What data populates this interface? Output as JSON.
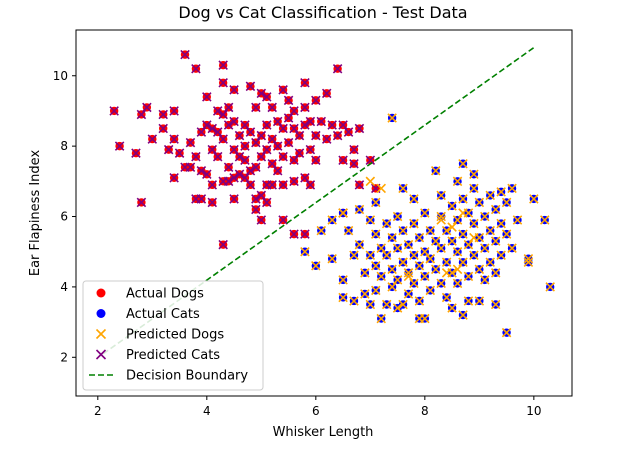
{
  "chart_data": {
    "type": "scatter",
    "title": "Dog vs Cat Classification - Test Data",
    "xlabel": "Whisker Length",
    "ylabel": "Ear Flapiness Index",
    "xlim": [
      1.6,
      10.7
    ],
    "ylim": [
      0.9,
      11.3
    ],
    "xticks": [
      2,
      4,
      6,
      8,
      10
    ],
    "yticks": [
      2,
      4,
      6,
      8,
      10
    ],
    "grid": false,
    "legend_position": "lower-left",
    "legend": [
      {
        "label": "Actual Dogs",
        "marker": "circle",
        "color": "#ff0000"
      },
      {
        "label": "Actual Cats",
        "marker": "circle",
        "color": "#0000ff"
      },
      {
        "label": "Predicted Dogs",
        "marker": "x",
        "color": "#ffa500"
      },
      {
        "label": "Predicted Cats",
        "marker": "x",
        "color": "#800080"
      },
      {
        "label": "Decision Boundary",
        "marker": "dashed-line",
        "color": "#008000"
      }
    ],
    "decision_boundary": {
      "x": [
        2.1,
        10.0
      ],
      "y": [
        2.1,
        10.8
      ],
      "color": "#008000"
    },
    "series": [
      {
        "name": "Actual Dogs",
        "color": "#ff0000",
        "points": [
          [
            2.3,
            9.0
          ],
          [
            2.4,
            8.0
          ],
          [
            2.7,
            7.8
          ],
          [
            2.8,
            8.9
          ],
          [
            2.8,
            6.4
          ],
          [
            2.9,
            9.1
          ],
          [
            3.0,
            8.2
          ],
          [
            3.2,
            8.5
          ],
          [
            3.2,
            8.9
          ],
          [
            3.3,
            7.9
          ],
          [
            3.4,
            9.0
          ],
          [
            3.4,
            8.2
          ],
          [
            3.4,
            7.1
          ],
          [
            3.5,
            7.8
          ],
          [
            3.6,
            10.6
          ],
          [
            3.6,
            7.4
          ],
          [
            3.7,
            8.1
          ],
          [
            3.7,
            7.4
          ],
          [
            3.8,
            10.2
          ],
          [
            3.8,
            7.7
          ],
          [
            3.8,
            6.5
          ],
          [
            3.9,
            8.4
          ],
          [
            3.9,
            7.3
          ],
          [
            3.9,
            6.5
          ],
          [
            4.0,
            9.4
          ],
          [
            4.0,
            8.6
          ],
          [
            4.0,
            7.2
          ],
          [
            4.1,
            8.5
          ],
          [
            4.1,
            7.9
          ],
          [
            4.1,
            6.9
          ],
          [
            4.1,
            6.4
          ],
          [
            4.2,
            9.0
          ],
          [
            4.2,
            8.4
          ],
          [
            4.2,
            7.7
          ],
          [
            4.3,
            10.3
          ],
          [
            4.3,
            9.8
          ],
          [
            4.3,
            8.9
          ],
          [
            4.3,
            8.2
          ],
          [
            4.3,
            7.0
          ],
          [
            4.3,
            5.2
          ],
          [
            4.4,
            9.1
          ],
          [
            4.4,
            8.6
          ],
          [
            4.4,
            7.4
          ],
          [
            4.4,
            7.0
          ],
          [
            4.5,
            9.6
          ],
          [
            4.5,
            8.7
          ],
          [
            4.5,
            7.9
          ],
          [
            4.5,
            7.1
          ],
          [
            4.5,
            6.5
          ],
          [
            4.6,
            8.3
          ],
          [
            4.6,
            7.7
          ],
          [
            4.6,
            7.2
          ],
          [
            4.7,
            8.6
          ],
          [
            4.7,
            8.0
          ],
          [
            4.7,
            7.6
          ],
          [
            4.7,
            7.1
          ],
          [
            4.8,
            9.7
          ],
          [
            4.8,
            8.4
          ],
          [
            4.8,
            7.3
          ],
          [
            4.8,
            6.9
          ],
          [
            4.9,
            9.1
          ],
          [
            4.9,
            8.1
          ],
          [
            4.9,
            7.4
          ],
          [
            4.9,
            6.5
          ],
          [
            4.9,
            6.2
          ],
          [
            5.0,
            9.5
          ],
          [
            5.0,
            8.3
          ],
          [
            5.0,
            7.7
          ],
          [
            5.0,
            6.6
          ],
          [
            5.0,
            5.9
          ],
          [
            5.1,
            9.4
          ],
          [
            5.1,
            8.6
          ],
          [
            5.1,
            7.9
          ],
          [
            5.1,
            6.9
          ],
          [
            5.1,
            6.4
          ],
          [
            5.2,
            9.1
          ],
          [
            5.2,
            8.2
          ],
          [
            5.2,
            7.5
          ],
          [
            5.2,
            6.9
          ],
          [
            5.3,
            8.7
          ],
          [
            5.3,
            8.0
          ],
          [
            5.3,
            7.3
          ],
          [
            5.4,
            9.6
          ],
          [
            5.4,
            8.5
          ],
          [
            5.4,
            7.7
          ],
          [
            5.4,
            6.9
          ],
          [
            5.4,
            5.9
          ],
          [
            5.5,
            9.3
          ],
          [
            5.5,
            8.8
          ],
          [
            5.5,
            8.1
          ],
          [
            5.6,
            9.0
          ],
          [
            5.6,
            8.5
          ],
          [
            5.6,
            7.6
          ],
          [
            5.6,
            7.0
          ],
          [
            5.7,
            8.3
          ],
          [
            5.7,
            7.8
          ],
          [
            5.8,
            9.8
          ],
          [
            5.8,
            9.1
          ],
          [
            5.8,
            8.6
          ],
          [
            5.8,
            7.1
          ],
          [
            5.8,
            5.5
          ],
          [
            5.9,
            8.7
          ],
          [
            5.9,
            7.9
          ],
          [
            5.9,
            6.9
          ],
          [
            6.0,
            9.3
          ],
          [
            6.0,
            8.3
          ],
          [
            6.0,
            7.6
          ],
          [
            6.1,
            8.7
          ],
          [
            6.2,
            8.2
          ],
          [
            6.2,
            9.5
          ],
          [
            6.3,
            8.6
          ],
          [
            6.4,
            8.3
          ],
          [
            6.4,
            10.2
          ],
          [
            6.5,
            8.6
          ],
          [
            6.5,
            7.6
          ],
          [
            6.6,
            8.4
          ],
          [
            6.7,
            7.9
          ],
          [
            6.7,
            7.5
          ],
          [
            6.8,
            8.5
          ],
          [
            6.8,
            6.9
          ],
          [
            7.0,
            7.6
          ],
          [
            6.5,
            6.1
          ],
          [
            7.1,
            6.8
          ],
          [
            5.6,
            5.5
          ]
        ]
      },
      {
        "name": "Actual Cats",
        "color": "#0000ff",
        "points": [
          [
            7.4,
            8.8
          ],
          [
            5.8,
            5.0
          ],
          [
            6.0,
            4.6
          ],
          [
            6.1,
            5.6
          ],
          [
            6.3,
            5.9
          ],
          [
            6.3,
            4.8
          ],
          [
            6.5,
            6.1
          ],
          [
            6.5,
            4.2
          ],
          [
            6.5,
            3.7
          ],
          [
            6.6,
            5.6
          ],
          [
            6.7,
            4.9
          ],
          [
            6.7,
            3.6
          ],
          [
            6.8,
            6.2
          ],
          [
            6.8,
            5.2
          ],
          [
            6.9,
            4.4
          ],
          [
            6.9,
            3.8
          ],
          [
            7.0,
            5.9
          ],
          [
            7.0,
            4.9
          ],
          [
            7.0,
            3.5
          ],
          [
            7.1,
            6.4
          ],
          [
            7.1,
            5.5
          ],
          [
            7.1,
            4.6
          ],
          [
            7.1,
            3.9
          ],
          [
            7.2,
            5.1
          ],
          [
            7.2,
            4.3
          ],
          [
            7.2,
            3.1
          ],
          [
            7.3,
            5.8
          ],
          [
            7.3,
            4.9
          ],
          [
            7.3,
            3.5
          ],
          [
            7.4,
            5.4
          ],
          [
            7.4,
            4.5
          ],
          [
            7.4,
            4.0
          ],
          [
            7.5,
            6.0
          ],
          [
            7.5,
            5.1
          ],
          [
            7.5,
            4.2
          ],
          [
            7.5,
            3.4
          ],
          [
            7.6,
            5.6
          ],
          [
            7.6,
            4.7
          ],
          [
            7.6,
            6.8
          ],
          [
            7.7,
            5.2
          ],
          [
            7.7,
            4.4
          ],
          [
            7.7,
            3.8
          ],
          [
            7.8,
            5.8
          ],
          [
            7.8,
            4.9
          ],
          [
            7.8,
            4.1
          ],
          [
            7.8,
            6.5
          ],
          [
            7.9,
            5.4
          ],
          [
            7.9,
            4.6
          ],
          [
            7.9,
            3.6
          ],
          [
            7.9,
            3.1
          ],
          [
            8.0,
            6.1
          ],
          [
            8.0,
            5.0
          ],
          [
            8.0,
            4.3
          ],
          [
            8.1,
            5.6
          ],
          [
            8.1,
            4.8
          ],
          [
            8.1,
            3.9
          ],
          [
            8.2,
            7.3
          ],
          [
            8.2,
            5.3
          ],
          [
            8.2,
            4.5
          ],
          [
            8.3,
            6.0
          ],
          [
            8.3,
            5.1
          ],
          [
            8.3,
            4.1
          ],
          [
            8.3,
            6.6
          ],
          [
            8.4,
            5.6
          ],
          [
            8.4,
            4.7
          ],
          [
            8.4,
            3.7
          ],
          [
            8.5,
            6.3
          ],
          [
            8.5,
            5.3
          ],
          [
            8.5,
            4.4
          ],
          [
            8.5,
            3.4
          ],
          [
            8.6,
            7.0
          ],
          [
            8.6,
            5.9
          ],
          [
            8.6,
            5.0
          ],
          [
            8.6,
            4.1
          ],
          [
            8.7,
            7.5
          ],
          [
            8.7,
            6.5
          ],
          [
            8.7,
            5.5
          ],
          [
            8.7,
            4.7
          ],
          [
            8.7,
            3.2
          ],
          [
            8.8,
            6.1
          ],
          [
            8.8,
            5.2
          ],
          [
            8.8,
            4.3
          ],
          [
            8.8,
            3.6
          ],
          [
            8.9,
            6.8
          ],
          [
            8.9,
            5.8
          ],
          [
            8.9,
            4.9
          ],
          [
            8.9,
            7.2
          ],
          [
            9.0,
            6.4
          ],
          [
            9.0,
            5.4
          ],
          [
            9.0,
            4.5
          ],
          [
            9.0,
            3.6
          ],
          [
            9.1,
            6.0
          ],
          [
            9.1,
            5.1
          ],
          [
            9.1,
            4.2
          ],
          [
            9.2,
            6.6
          ],
          [
            9.2,
            5.6
          ],
          [
            9.2,
            4.7
          ],
          [
            9.3,
            6.2
          ],
          [
            9.3,
            5.3
          ],
          [
            9.3,
            4.4
          ],
          [
            9.3,
            3.5
          ],
          [
            9.4,
            6.7
          ],
          [
            9.4,
            5.8
          ],
          [
            9.4,
            4.9
          ],
          [
            9.5,
            6.4
          ],
          [
            9.5,
            5.5
          ],
          [
            9.5,
            2.7
          ],
          [
            9.6,
            6.8
          ],
          [
            9.6,
            5.1
          ],
          [
            9.7,
            5.9
          ],
          [
            9.9,
            4.8
          ],
          [
            10.0,
            6.5
          ],
          [
            10.2,
            5.9
          ],
          [
            10.3,
            4.0
          ],
          [
            9.9,
            4.7
          ],
          [
            8.0,
            3.1
          ],
          [
            7.6,
            3.5
          ]
        ]
      },
      {
        "name": "Predicted Dogs",
        "color": "#ffa500",
        "points": [
          [
            7.0,
            7.0
          ],
          [
            7.2,
            6.8
          ],
          [
            6.5,
            6.1
          ],
          [
            7.8,
            5.8
          ],
          [
            8.1,
            4.8
          ],
          [
            8.3,
            5.9
          ],
          [
            8.6,
            4.5
          ],
          [
            8.4,
            4.4
          ],
          [
            7.7,
            4.3
          ],
          [
            7.6,
            4.7
          ],
          [
            8.7,
            6.1
          ],
          [
            8.5,
            5.7
          ],
          [
            8.9,
            5.4
          ]
        ]
      }
    ]
  }
}
